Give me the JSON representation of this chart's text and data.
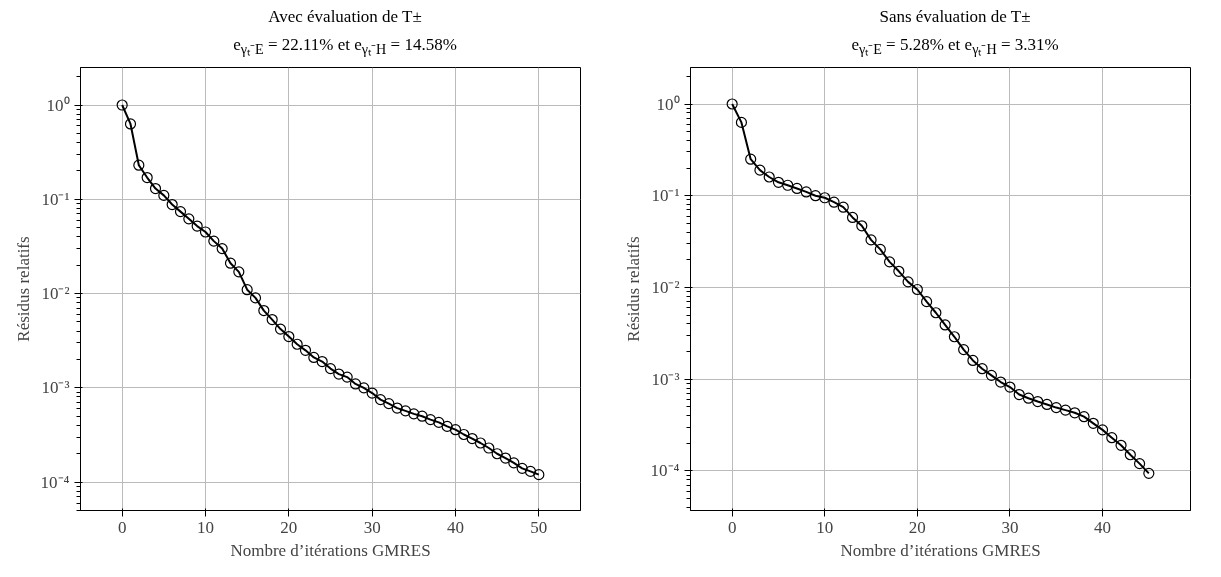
{
  "chart_data": [
    {
      "type": "line",
      "title": "Avec évaluation de T±",
      "subtitle": "e$_{γₜ⁻E}$ = 22.11% et e$_{γₜ⁻H}$ = 14.58%",
      "xlabel": "Nombre d’itérations GMRES",
      "ylabel": "Résidus relatifs",
      "log": "y",
      "grid": true,
      "marker": "circle",
      "line_style": "solid",
      "x": [
        0,
        1,
        2,
        3,
        4,
        5,
        6,
        7,
        8,
        9,
        10,
        11,
        12,
        13,
        14,
        15,
        16,
        17,
        18,
        19,
        20,
        21,
        22,
        23,
        24,
        25,
        26,
        27,
        28,
        29,
        30,
        31,
        32,
        33,
        34,
        35,
        36,
        37,
        38,
        39,
        40,
        41,
        42,
        43,
        44,
        45,
        46,
        47,
        48,
        49,
        50
      ],
      "series": [
        {
          "color": "#000000",
          "values": [
            1,
            0.63,
            0.23,
            0.17,
            0.13,
            0.11,
            0.088,
            0.074,
            0.062,
            0.052,
            0.045,
            0.036,
            0.03,
            0.021,
            0.017,
            0.011,
            0.009,
            0.0066,
            0.0053,
            0.0042,
            0.0035,
            0.0029,
            0.0025,
            0.0021,
            0.0019,
            0.0016,
            0.0014,
            0.0013,
            0.0011,
            0.001,
            0.00088,
            0.00075,
            0.00068,
            0.00061,
            0.00057,
            0.00053,
            0.0005,
            0.00046,
            0.00043,
            0.00039,
            0.00036,
            0.00032,
            0.00029,
            0.00026,
            0.00023,
            0.0002,
            0.00018,
            0.00016,
            0.00014,
            0.00013,
            0.00012
          ]
        }
      ],
      "xlim": [
        -5,
        55
      ],
      "xticks": [
        0,
        10,
        20,
        30,
        40,
        50
      ],
      "ylim": [
        5e-05,
        2.5
      ],
      "yticks": [
        {
          "value": 1,
          "label": "10⁰"
        },
        {
          "value": 0.1,
          "label": "10⁻¹"
        },
        {
          "value": 0.01,
          "label": "10⁻²"
        },
        {
          "value": 0.001,
          "label": "10⁻³"
        },
        {
          "value": 0.0001,
          "label": "10⁻⁴"
        }
      ]
    },
    {
      "type": "line",
      "title": "Sans évaluation de T±",
      "subtitle": "e$_{γₜ⁻E}$ = 5.28% et e$_{γₜ⁻H}$ = 3.31%",
      "xlabel": "Nombre d’itérations GMRES",
      "ylabel": "Résidus relatifs",
      "log": "y",
      "grid": true,
      "marker": "circle",
      "line_style": "solid",
      "x": [
        0,
        1,
        2,
        3,
        4,
        5,
        6,
        7,
        8,
        9,
        10,
        11,
        12,
        13,
        14,
        15,
        16,
        17,
        18,
        19,
        20,
        21,
        22,
        23,
        24,
        25,
        26,
        27,
        28,
        29,
        30,
        31,
        32,
        33,
        34,
        35,
        36,
        37,
        38,
        39,
        40,
        41,
        42,
        43,
        44,
        45
      ],
      "series": [
        {
          "color": "#000000",
          "values": [
            1,
            0.63,
            0.25,
            0.19,
            0.16,
            0.14,
            0.13,
            0.12,
            0.11,
            0.1,
            0.095,
            0.085,
            0.075,
            0.058,
            0.047,
            0.033,
            0.026,
            0.019,
            0.015,
            0.0115,
            0.0095,
            0.007,
            0.0053,
            0.0039,
            0.0029,
            0.0021,
            0.0016,
            0.0013,
            0.0011,
            0.00093,
            0.00082,
            0.00068,
            0.00062,
            0.00057,
            0.00053,
            0.00049,
            0.00046,
            0.00043,
            0.00039,
            0.00033,
            0.00028,
            0.00023,
            0.00019,
            0.00015,
            0.00012,
            9.4e-05
          ]
        }
      ],
      "xlim": [
        -4.5,
        49.5
      ],
      "xticks": [
        0,
        10,
        20,
        30,
        40
      ],
      "ylim": [
        3.7e-05,
        2.5
      ],
      "yticks": [
        {
          "value": 1,
          "label": "10⁰"
        },
        {
          "value": 0.1,
          "label": "10⁻¹"
        },
        {
          "value": 0.01,
          "label": "10⁻²"
        },
        {
          "value": 0.001,
          "label": "10⁻³"
        },
        {
          "value": 0.0001,
          "label": "10⁻⁴"
        }
      ]
    }
  ]
}
